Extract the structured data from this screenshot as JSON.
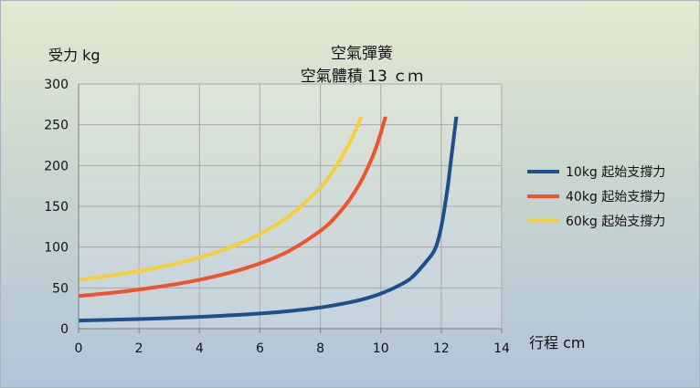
{
  "chart_data": {
    "type": "line",
    "title_line1": "空氣彈簧",
    "title_line2": "空氣體積 13 ｃｍ",
    "ylabel": "受力 kg",
    "xlabel": "行程 cm",
    "xlim": [
      0,
      14
    ],
    "ylim": [
      0,
      300
    ],
    "xticks": [
      0,
      2,
      4,
      6,
      8,
      10,
      12,
      14
    ],
    "yticks": [
      0,
      50,
      100,
      150,
      200,
      250,
      300
    ],
    "grid": true,
    "legend_position": "right",
    "series": [
      {
        "name": "10kg 起始支撐力",
        "color": "#1f4e8c",
        "x": [
          0,
          1,
          2,
          3,
          4,
          5,
          6,
          7,
          8,
          8.5,
          9,
          9.5,
          10,
          10.5,
          11,
          11.5,
          11.8,
          12.0,
          12.2,
          12.3,
          12.4,
          12.5
        ],
        "y": [
          10,
          10.8,
          11.8,
          13,
          14.4,
          16.3,
          18.6,
          21.7,
          26,
          29,
          32.5,
          37,
          43,
          51,
          62,
          82,
          98,
          125,
          170,
          200,
          230,
          260
        ]
      },
      {
        "name": "40kg 起始支撐力",
        "color": "#f0522a",
        "x": [
          0,
          1,
          2,
          3,
          4,
          5,
          6,
          7,
          8,
          8.5,
          9,
          9.5,
          10,
          10.5,
          11
        ],
        "y": [
          40,
          43.6,
          48,
          53.3,
          60,
          68.6,
          80,
          96,
          120,
          137,
          160,
          192,
          240,
          320,
          480
        ],
        "clip_x": 11
      },
      {
        "name": "60kg 起始支撐力",
        "color": "#f6cf38",
        "x": [
          0,
          1,
          2,
          3,
          4,
          5,
          6,
          7,
          8,
          8.5,
          9,
          9.5,
          10
        ],
        "y": [
          60,
          64.8,
          70.7,
          78,
          87.3,
          99.5,
          116,
          139,
          173,
          198,
          230,
          277,
          360
        ],
        "clip_x": 10
      }
    ]
  }
}
